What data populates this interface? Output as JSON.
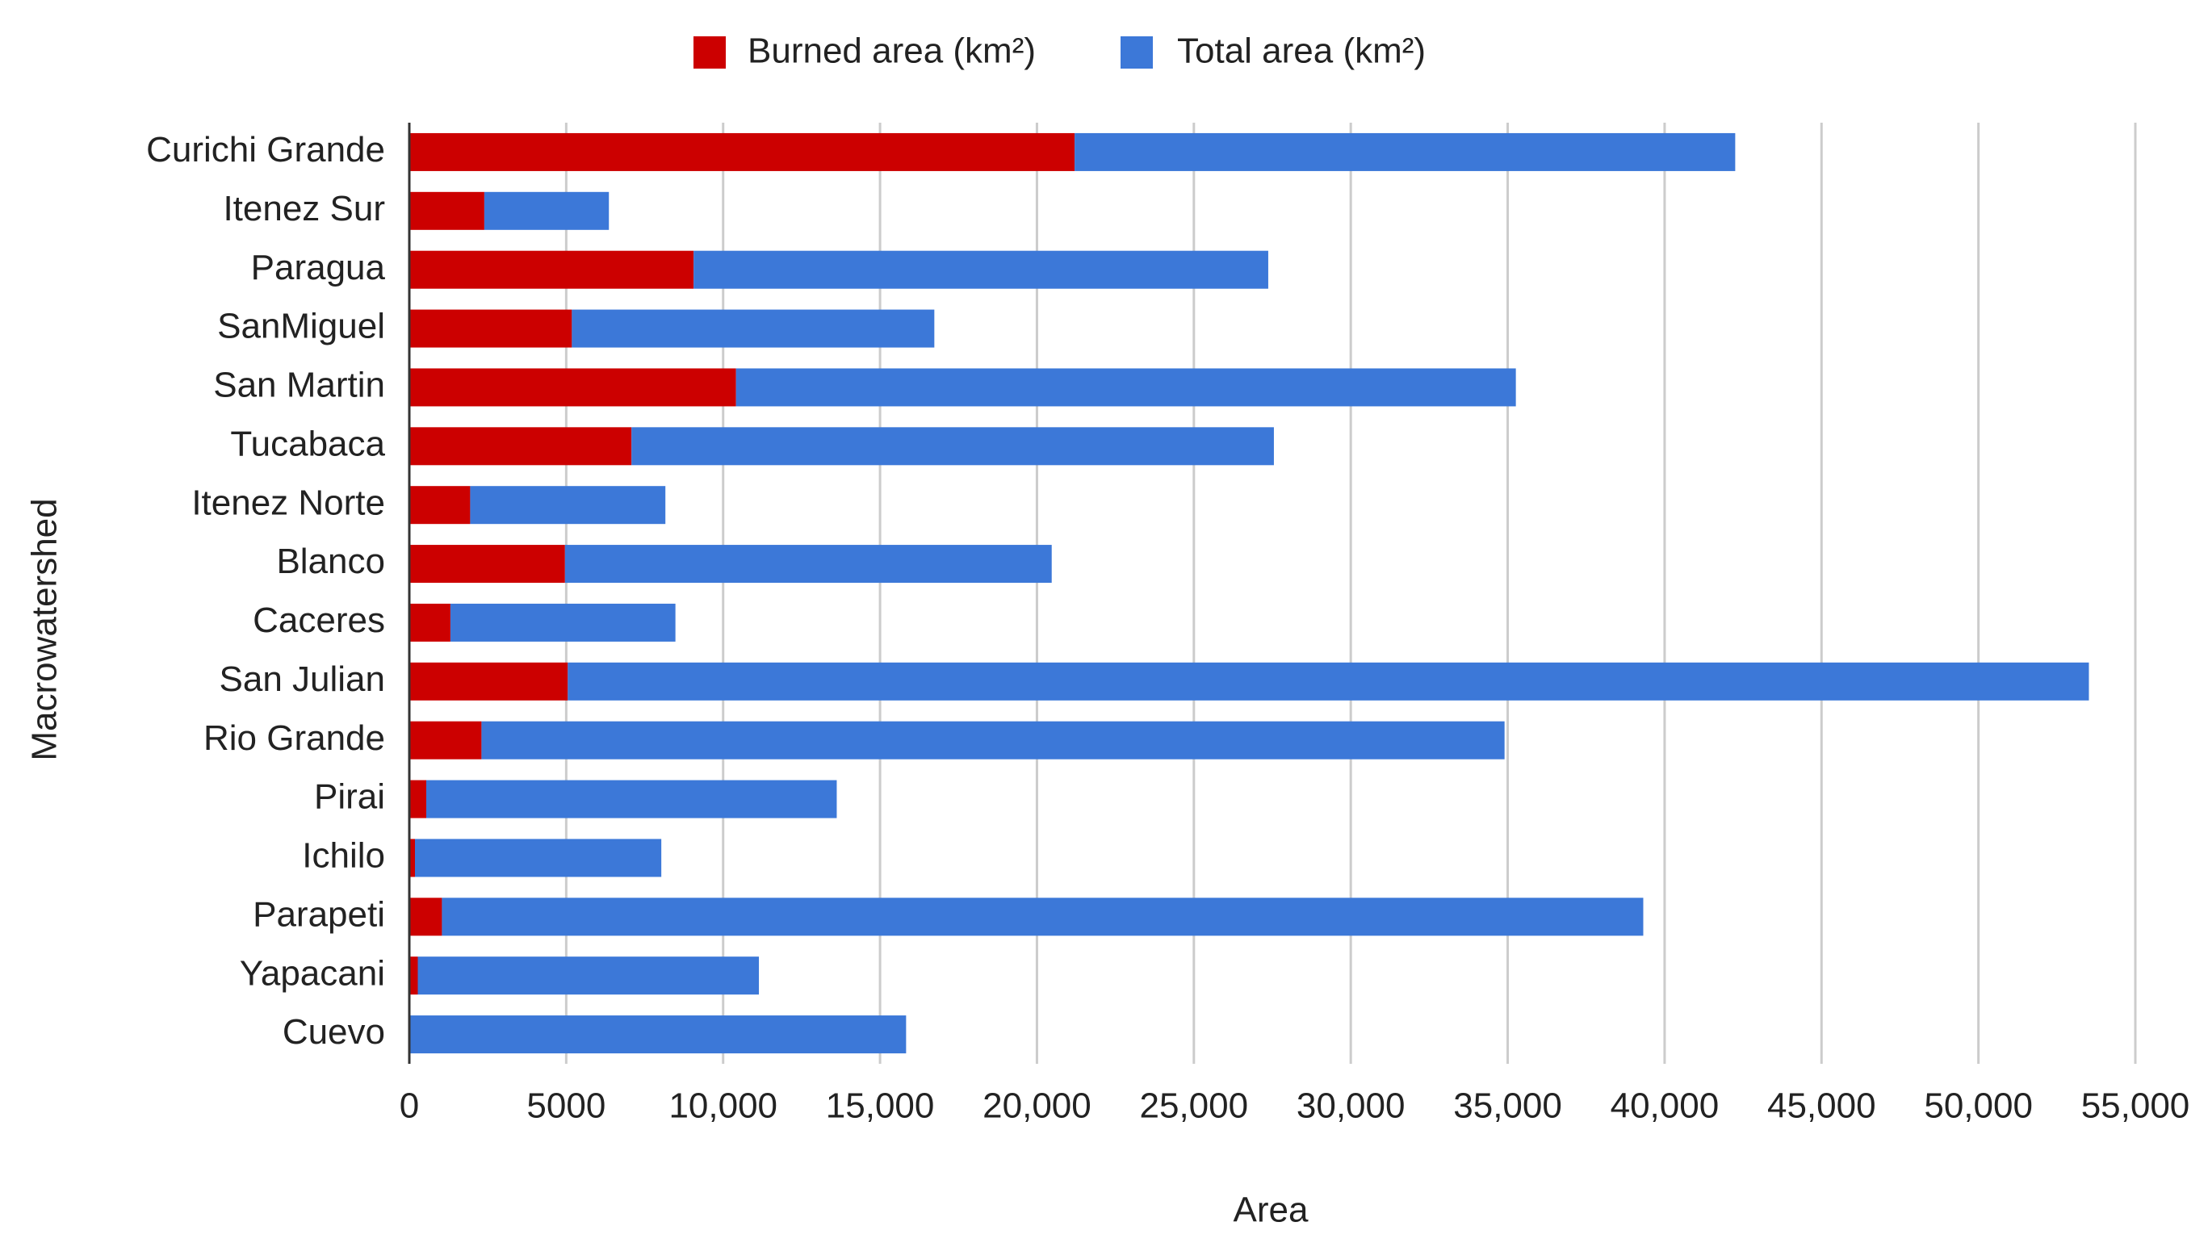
{
  "chart_data": {
    "type": "stacked-bar-horizontal",
    "x_label": "Area",
    "y_label": "Macrowatershed",
    "categories": [
      "Curichi Grande",
      "Itenez Sur",
      "Paragua",
      "SanMiguel",
      "San Martin",
      "Tucabaca",
      "Itenez Norte",
      "Blanco",
      "Caceres",
      "San Julian",
      "Rio Grande",
      "Pirai",
      "Ichilo",
      "Parapeti",
      "Yapacani",
      "Cuevo"
    ],
    "series": [
      {
        "name": "Burned area (km²)",
        "color": "#cc0000",
        "values": [
          21200,
          2390,
          9060,
          5180,
          10410,
          7080,
          1940,
          4960,
          1310,
          5050,
          2300,
          540,
          180,
          1040,
          270,
          0
        ]
      },
      {
        "name": "Total area (km²)",
        "color": "#3c78d8",
        "values": [
          21050,
          3970,
          18310,
          11550,
          24850,
          20470,
          6220,
          15510,
          7170,
          48470,
          32600,
          13080,
          7850,
          38280,
          10870,
          15830
        ]
      }
    ],
    "xlim": [
      0,
      55000
    ],
    "xticks": [
      0,
      5000,
      {
        "value": 10000,
        "label": "10,000"
      },
      {
        "value": 15000,
        "label": "15,000"
      },
      {
        "value": 20000,
        "label": "20,000"
      },
      {
        "value": 25000,
        "label": "25,000"
      },
      {
        "value": 30000,
        "label": "30,000"
      },
      {
        "value": 35000,
        "label": "35,000"
      },
      {
        "value": 40000,
        "label": "40,000"
      },
      {
        "value": 45000,
        "label": "45,000"
      },
      {
        "value": 50000,
        "label": "50,000"
      },
      {
        "value": 55000,
        "label": "55,000"
      }
    ],
    "grid": true,
    "legend": "top"
  }
}
